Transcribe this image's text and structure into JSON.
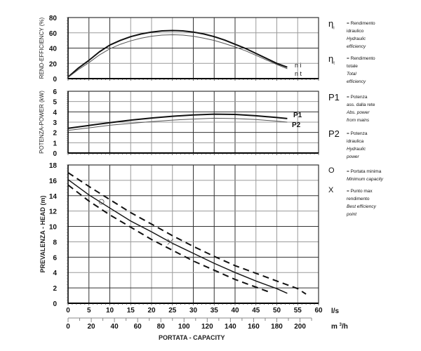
{
  "chart_data": [
    {
      "type": "line",
      "title": "",
      "ylabel": "REND-EFFICIENCY (%)",
      "xlabel": "",
      "xlim": [
        0,
        60
      ],
      "ylim": [
        0,
        80
      ],
      "yticks": [
        "0",
        "20",
        "40",
        "60",
        "80"
      ],
      "grid": true,
      "series": [
        {
          "name": "ηi",
          "style": "thick",
          "x": [
            0,
            2.5,
            5,
            7.5,
            10,
            12.5,
            15,
            17.5,
            20,
            22.5,
            25,
            27.5,
            30,
            32.5,
            35,
            37.5,
            40,
            42.5,
            45,
            47.5,
            50,
            52.5
          ],
          "y": [
            2,
            14,
            24,
            35,
            44,
            50,
            55,
            58.5,
            61,
            62.5,
            63,
            62.5,
            61,
            58.5,
            55,
            50.5,
            45,
            39.5,
            33,
            26.5,
            20,
            15
          ]
        },
        {
          "name": "ηt",
          "style": "thin",
          "x": [
            0,
            2.5,
            5,
            7.5,
            10,
            12.5,
            15,
            17.5,
            20,
            22.5,
            25,
            27.5,
            30,
            32.5,
            35,
            37.5,
            40,
            42.5,
            45,
            47.5,
            50,
            52.5
          ],
          "y": [
            1.5,
            12,
            21,
            31,
            39,
            45,
            49.5,
            53,
            55.5,
            57,
            57.5,
            57,
            55.5,
            53,
            50,
            46,
            41.5,
            36.5,
            30.5,
            24.5,
            18.5,
            13
          ]
        }
      ],
      "series_labels": [
        "n i",
        "n t"
      ]
    },
    {
      "type": "line",
      "title": "",
      "ylabel": "POTENZA-POWER (kW)",
      "xlabel": "",
      "xlim": [
        0,
        60
      ],
      "ylim": [
        0,
        6
      ],
      "yticks": [
        "0",
        "1",
        "2",
        "3",
        "4",
        "5",
        "6"
      ],
      "grid": true,
      "series": [
        {
          "name": "P1",
          "style": "thick",
          "x": [
            0,
            5,
            10,
            15,
            20,
            25,
            30,
            35,
            40,
            45,
            50,
            52.5
          ],
          "y": [
            2.4,
            2.68,
            2.95,
            3.2,
            3.4,
            3.57,
            3.7,
            3.78,
            3.75,
            3.62,
            3.45,
            3.35
          ]
        },
        {
          "name": "P2",
          "style": "thin",
          "x": [
            0,
            5,
            10,
            15,
            20,
            25,
            30,
            35,
            40,
            45,
            50,
            52.5
          ],
          "y": [
            2.2,
            2.45,
            2.7,
            2.88,
            3.05,
            3.2,
            3.3,
            3.38,
            3.35,
            3.25,
            3.1,
            3.0
          ]
        }
      ],
      "series_labels": [
        "P1",
        "P2"
      ]
    },
    {
      "type": "line",
      "title": "",
      "ylabel": "PREVALENZA  -  HEAD (m)",
      "xlabel": "PORTATA - CAPACITY",
      "xlim": [
        0,
        60
      ],
      "ylim": [
        0,
        18
      ],
      "yticks": [
        "0",
        "2",
        "4",
        "6",
        "8",
        "10",
        "12",
        "14",
        "16",
        "18"
      ],
      "xticks": [
        "0",
        "5",
        "10",
        "15",
        "20",
        "25",
        "30",
        "35",
        "40",
        "45",
        "50",
        "55",
        "60"
      ],
      "xunit": "l/s",
      "x2ticks": [
        "0",
        "20",
        "40",
        "60",
        "80",
        "100",
        "120",
        "140",
        "160",
        "180",
        "200"
      ],
      "x2unit": "m 3/h",
      "grid": true,
      "series": [
        {
          "name": "Head (nominal)",
          "style": "solid",
          "x": [
            0,
            5,
            10,
            15,
            20,
            25,
            30,
            35,
            40,
            45,
            50,
            52.5
          ],
          "y": [
            16.1,
            14.1,
            12.4,
            10.7,
            9.3,
            7.8,
            6.5,
            5.2,
            4.0,
            2.9,
            1.9,
            1.3
          ]
        },
        {
          "name": "Head (upper tolerance)",
          "style": "dashed",
          "x": [
            0,
            5,
            10,
            15,
            20,
            25,
            30,
            35,
            40,
            45,
            50,
            55,
            57
          ],
          "y": [
            17.0,
            15.2,
            13.5,
            11.8,
            10.3,
            8.8,
            7.4,
            6.1,
            4.9,
            3.9,
            2.9,
            1.9,
            1.2
          ]
        },
        {
          "name": "Head (lower tolerance)",
          "style": "dashed",
          "x": [
            0,
            5,
            10,
            15,
            20,
            25,
            30,
            35,
            40,
            45,
            48
          ],
          "y": [
            15.4,
            13.3,
            11.5,
            9.9,
            8.3,
            6.9,
            5.5,
            4.3,
            3.1,
            2.1,
            1.5
          ]
        }
      ],
      "markers": [
        {
          "symbol": "O",
          "name": "min-capacity",
          "x": 8,
          "y": 13.2
        },
        {
          "symbol": "X",
          "name": "best-efficiency",
          "x": 24.5,
          "y": 8.0
        }
      ]
    }
  ],
  "legend": {
    "efficiency": [
      {
        "symbol": "η",
        "sub": "i",
        "lines": [
          "= Rendimento",
          "idraulico"
        ],
        "lines_it": [
          "Hydraulic",
          "efficiency"
        ]
      },
      {
        "symbol": "η",
        "sub": "t",
        "lines": [
          "= Rendimento",
          "totale"
        ],
        "lines_it": [
          "Total",
          "efficiency"
        ]
      }
    ],
    "power": [
      {
        "symbol": "P1",
        "sub": "",
        "lines": [
          "= Potenza",
          "ass. dalla rete"
        ],
        "lines_it": [
          "Abs. power",
          "from mains"
        ]
      },
      {
        "symbol": "P2",
        "sub": "",
        "lines": [
          "= Potenza",
          "idraulica"
        ],
        "lines_it": [
          "Hydraulic",
          "power"
        ]
      }
    ],
    "head": [
      {
        "symbol": "O",
        "sub": "",
        "lines": [
          "= Portata minima"
        ],
        "lines_it": [
          "Minimum capacity"
        ]
      },
      {
        "symbol": "X",
        "sub": "",
        "lines": [
          "= Punto max",
          "rendimento"
        ],
        "lines_it": [
          "Best efficiency",
          "point"
        ]
      }
    ]
  },
  "colors": {
    "line": "#111111",
    "grid_dark": "#333333",
    "grid_light": "#9a9a9a",
    "thin_line": "#555555"
  }
}
